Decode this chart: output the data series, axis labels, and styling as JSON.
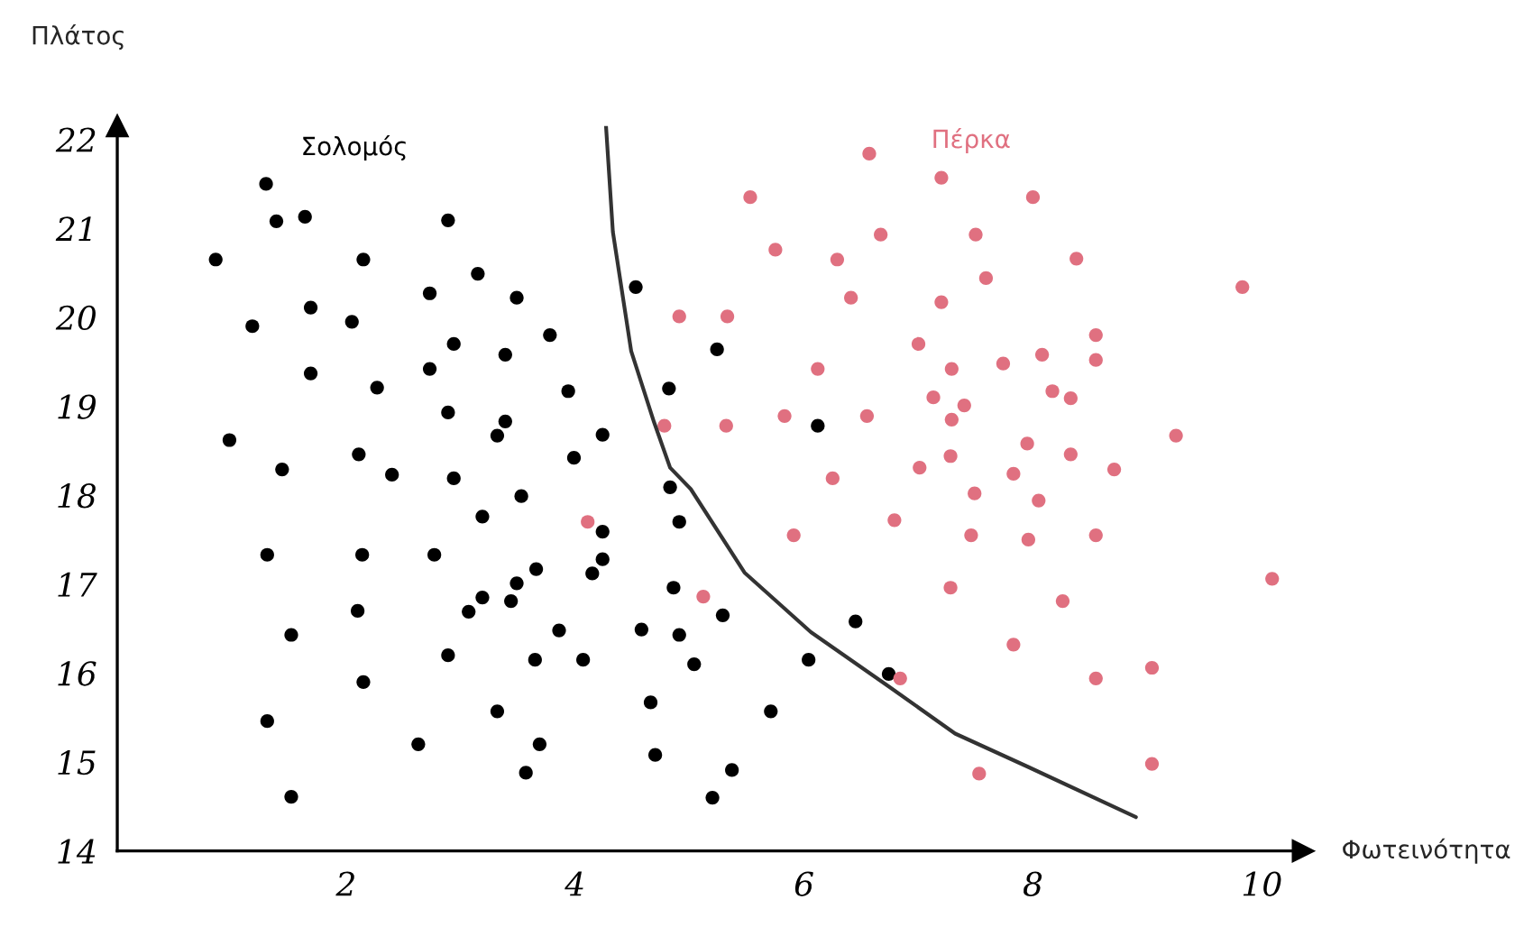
{
  "chart_data": {
    "type": "scatter",
    "xlabel": "Φωτεινότητα",
    "ylabel": "Πλάτος",
    "xlim": [
      0,
      10.36
    ],
    "ylim": [
      14,
      22.15
    ],
    "xticks": [
      2,
      4,
      6,
      8,
      10
    ],
    "yticks": [
      14,
      15,
      16,
      17,
      18,
      19,
      20,
      21,
      22
    ],
    "grid": false,
    "legend": false,
    "series": [
      {
        "name": "Σολομός",
        "color": "#000000",
        "marker": "circle",
        "x": [
          1.3,
          1.39,
          1.64,
          2.89,
          0.86,
          2.15,
          3.15,
          2.73,
          3.49,
          1.69,
          1.18,
          2.05,
          2.94,
          3.78,
          3.39,
          1.69,
          2.73,
          2.27,
          3.94,
          2.89,
          3.39,
          3.32,
          4.24,
          0.98,
          3.99,
          2.11,
          1.44,
          2.4,
          2.94,
          3.53,
          3.19,
          4.24,
          4.24,
          4.15,
          1.31,
          2.14,
          2.77,
          3.66,
          3.49,
          3.19,
          3.44,
          3.07,
          2.1,
          1.52,
          3.86,
          2.89,
          3.65,
          4.07,
          2.15,
          3.32,
          1.31,
          2.63,
          3.69,
          3.57,
          1.52,
          4.83,
          4.91,
          4.86,
          5.29,
          4.58,
          4.91,
          5.04,
          4.66,
          5.71,
          6.04,
          6.45,
          6.74,
          4.7,
          5.37,
          5.2,
          4.53,
          5.24,
          4.82,
          6.12
        ],
        "values": [
          21.5,
          21.08,
          21.13,
          21.09,
          20.65,
          20.65,
          20.49,
          20.27,
          20.22,
          20.11,
          19.9,
          19.95,
          19.7,
          19.8,
          19.58,
          19.37,
          19.42,
          19.21,
          19.17,
          18.93,
          18.83,
          18.67,
          18.68,
          18.62,
          18.42,
          18.46,
          18.29,
          18.23,
          18.19,
          17.99,
          17.76,
          17.59,
          17.28,
          17.12,
          17.33,
          17.33,
          17.33,
          17.17,
          17.01,
          16.85,
          16.81,
          16.69,
          16.7,
          16.43,
          16.48,
          16.2,
          16.15,
          16.15,
          15.9,
          15.57,
          15.46,
          15.2,
          15.2,
          14.88,
          14.61,
          18.09,
          17.7,
          16.96,
          16.65,
          16.49,
          16.43,
          16.1,
          15.67,
          15.57,
          16.15,
          16.58,
          15.99,
          15.08,
          14.91,
          14.6,
          20.34,
          19.64,
          19.2,
          18.78
        ]
      },
      {
        "name": "Πέρκα",
        "color": "#e07080",
        "marker": "circle",
        "x": [
          4.11,
          5.12,
          6.84,
          6.25,
          5.91,
          6.79,
          7.01,
          7.28,
          7.83,
          7.49,
          7.46,
          7.28,
          7.83,
          7.53,
          6.57,
          7.2,
          5.53,
          6.67,
          7.5,
          5.75,
          6.29,
          7.59,
          6.41,
          7.2,
          4.91,
          5.33,
          7.0,
          7.74,
          6.12,
          7.29,
          7.13,
          7.4,
          7.29,
          4.78,
          5.32,
          5.83,
          6.55,
          7.95,
          8.0,
          8.38,
          9.83,
          8.55,
          8.08,
          8.55,
          8.17,
          8.33,
          8.33,
          9.25,
          8.71,
          8.05,
          7.96,
          8.55,
          8.26,
          10.09,
          8.55,
          9.04,
          9.04
        ],
        "values": [
          17.7,
          16.86,
          15.94,
          18.19,
          17.55,
          17.72,
          18.31,
          18.44,
          18.24,
          18.02,
          17.55,
          16.96,
          16.32,
          14.87,
          21.84,
          21.57,
          21.35,
          20.93,
          20.93,
          20.76,
          20.65,
          20.44,
          20.22,
          20.17,
          20.01,
          20.01,
          19.7,
          19.48,
          19.42,
          19.42,
          19.1,
          19.01,
          18.85,
          18.78,
          18.78,
          18.89,
          18.89,
          18.58,
          21.35,
          20.66,
          20.34,
          19.8,
          19.58,
          19.52,
          19.17,
          19.09,
          18.46,
          18.67,
          18.29,
          17.94,
          17.5,
          17.55,
          16.81,
          17.06,
          15.94,
          16.06,
          14.98
        ]
      },
      {
        "type": "line",
        "color": "#333333",
        "x": [
          4.27,
          4.33,
          4.49,
          4.69,
          4.83,
          5.01,
          5.48,
          6.06,
          6.74,
          7.32,
          7.95,
          8.9
        ],
        "values": [
          22.15,
          20.96,
          19.62,
          18.82,
          18.31,
          18.07,
          17.13,
          16.46,
          15.85,
          15.32,
          14.95,
          14.38
        ]
      }
    ]
  }
}
